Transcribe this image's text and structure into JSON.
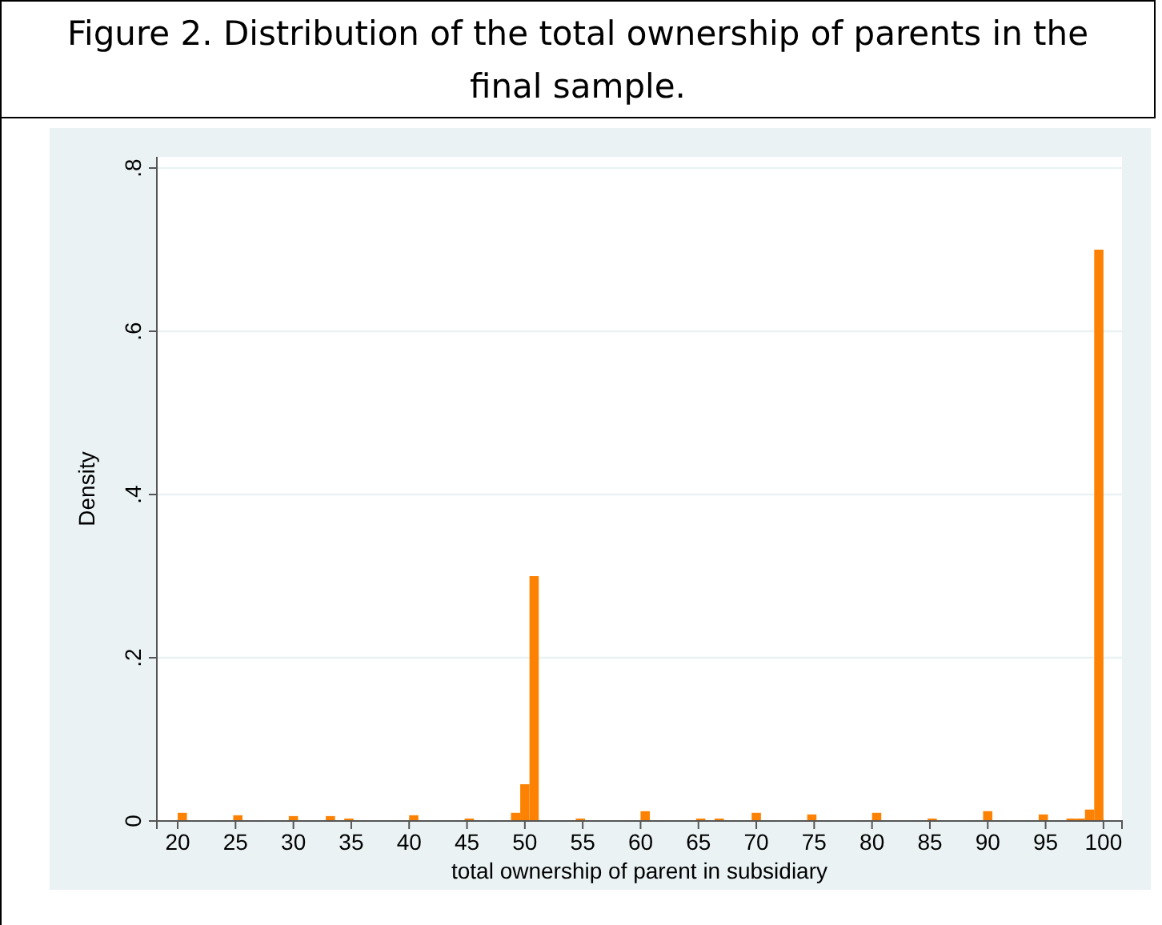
{
  "chart_data": {
    "type": "histogram",
    "title": "Figure 2. Distribution of the total ownership of parents in the final sample.",
    "xlabel": "total ownership of parent in subsidiary",
    "ylabel": "Density",
    "color": "#fd8204",
    "bins": [
      20,
      20.8,
      21.6,
      22.4,
      23.2,
      24,
      24.8,
      25.6,
      26.4,
      27.2,
      28,
      28.8,
      29.6,
      30.4,
      31.2,
      32,
      32.8,
      33.6,
      34.4,
      35.2,
      36,
      36.8,
      37.6,
      38.4,
      39.2,
      40,
      40.8,
      41.6,
      42.4,
      43.2,
      44,
      44.8,
      45.6,
      46.4,
      47.2,
      48,
      48.8,
      49.6,
      50.4,
      51.2,
      52,
      52.8,
      53.6,
      54.4,
      55.2,
      56,
      56.8,
      57.6,
      58.4,
      59.2,
      60,
      60.8,
      61.6,
      62.4,
      63.2,
      64,
      64.8,
      65.6,
      66.4,
      67.2,
      68,
      68.8,
      69.6,
      70.4,
      71.2,
      72,
      72.8,
      73.6,
      74.4,
      75.2,
      76,
      76.8,
      77.6,
      78.4,
      79.2,
      80,
      80.8,
      81.6,
      82.4,
      83.2,
      84,
      84.8,
      85.6,
      86.4,
      87.2,
      88,
      88.8,
      89.6,
      90.4,
      91.2,
      92,
      92.8,
      93.6,
      94.4,
      95.2,
      96,
      96.8,
      97.6,
      98.4,
      99.2,
      100
    ],
    "values": [
      0.01,
      0,
      0,
      0,
      0,
      0,
      0.007,
      0,
      0,
      0,
      0,
      0,
      0.006,
      0,
      0,
      0,
      0.006,
      0,
      0.003,
      0,
      0,
      0,
      0,
      0,
      0,
      0.007,
      0,
      0,
      0,
      0,
      0,
      0.003,
      0,
      0,
      0,
      0,
      0.01,
      0.045,
      0.3,
      0,
      0,
      0,
      0,
      0.003,
      0,
      0,
      0,
      0,
      0,
      0,
      0.012,
      0,
      0,
      0,
      0,
      0,
      0.003,
      0,
      0.003,
      0,
      0,
      0,
      0.01,
      0,
      0,
      0,
      0,
      0,
      0.008,
      0,
      0,
      0,
      0,
      0,
      0,
      0.01,
      0,
      0,
      0,
      0,
      0,
      0.003,
      0,
      0,
      0,
      0,
      0,
      0.012,
      0,
      0,
      0,
      0,
      0,
      0.008,
      0,
      0,
      0.003,
      0.003,
      0.014,
      0.7
    ],
    "xlim": [
      18.2,
      101.6
    ],
    "ylim": [
      0,
      0.8
    ],
    "xticks": [
      20,
      25,
      30,
      35,
      40,
      45,
      50,
      55,
      60,
      65,
      70,
      75,
      80,
      85,
      90,
      95,
      100
    ],
    "yticks": [
      {
        "value": 0,
        "label": "0"
      },
      {
        "value": 0.2,
        "label": ".2"
      },
      {
        "value": 0.4,
        "label": ".4"
      },
      {
        "value": 0.6,
        "label": ".6"
      },
      {
        "value": 0.8,
        "label": ".8"
      }
    ],
    "grid": "y"
  }
}
